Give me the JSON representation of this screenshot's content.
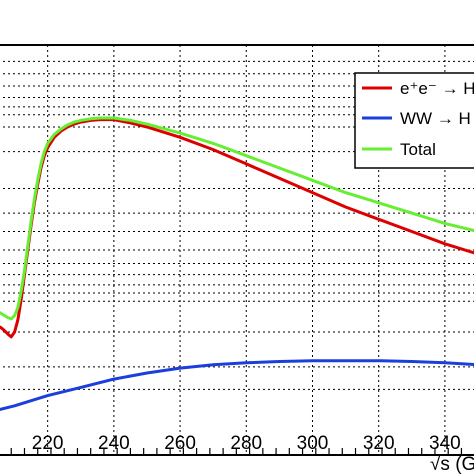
{
  "chart_data": {
    "type": "line",
    "xlabel": "√s (G",
    "xlim": [
      205,
      350
    ],
    "ylim": [
      0,
      1
    ],
    "grid": true,
    "y_scale": "log",
    "x_ticks": [
      220,
      240,
      260,
      280,
      300,
      320,
      340
    ],
    "legend_position": "top-right",
    "series": [
      {
        "name": "e⁺e⁻ → HZ",
        "color": "#dd0000",
        "x": [
          205,
          206,
          207,
          208,
          209,
          210,
          211,
          212,
          213,
          214,
          215,
          216,
          217,
          218,
          219,
          220,
          222,
          224,
          226,
          228,
          230,
          233,
          236,
          240,
          245,
          250,
          260,
          270,
          280,
          290,
          300,
          310,
          320,
          330,
          340,
          350
        ],
        "y": [
          0.315,
          0.31,
          0.303,
          0.295,
          0.288,
          0.3,
          0.33,
          0.38,
          0.44,
          0.5,
          0.56,
          0.615,
          0.66,
          0.7,
          0.73,
          0.75,
          0.775,
          0.79,
          0.8,
          0.807,
          0.812,
          0.816,
          0.818,
          0.818,
          0.81,
          0.8,
          0.775,
          0.745,
          0.71,
          0.675,
          0.64,
          0.605,
          0.575,
          0.545,
          0.515,
          0.49
        ]
      },
      {
        "name": "WW → H",
        "color": "#1a3fdd",
        "x": [
          205,
          210,
          220,
          230,
          240,
          250,
          260,
          270,
          280,
          290,
          300,
          310,
          320,
          330,
          340,
          350
        ],
        "y": [
          0.11,
          0.12,
          0.145,
          0.165,
          0.185,
          0.2,
          0.212,
          0.22,
          0.225,
          0.228,
          0.23,
          0.23,
          0.23,
          0.228,
          0.225,
          0.22
        ]
      },
      {
        "name": "Total",
        "color": "#66ee33",
        "x": [
          205,
          206,
          207,
          208,
          209,
          210,
          211,
          212,
          213,
          214,
          215,
          216,
          217,
          218,
          219,
          220,
          222,
          224,
          226,
          228,
          230,
          233,
          236,
          240,
          245,
          250,
          260,
          270,
          280,
          290,
          300,
          310,
          320,
          330,
          340,
          350
        ],
        "y": [
          0.35,
          0.345,
          0.34,
          0.335,
          0.332,
          0.34,
          0.36,
          0.4,
          0.45,
          0.51,
          0.57,
          0.625,
          0.67,
          0.71,
          0.74,
          0.76,
          0.782,
          0.795,
          0.805,
          0.812,
          0.816,
          0.82,
          0.822,
          0.822,
          0.816,
          0.807,
          0.785,
          0.76,
          0.73,
          0.7,
          0.67,
          0.64,
          0.615,
          0.59,
          0.565,
          0.545
        ]
      }
    ]
  }
}
